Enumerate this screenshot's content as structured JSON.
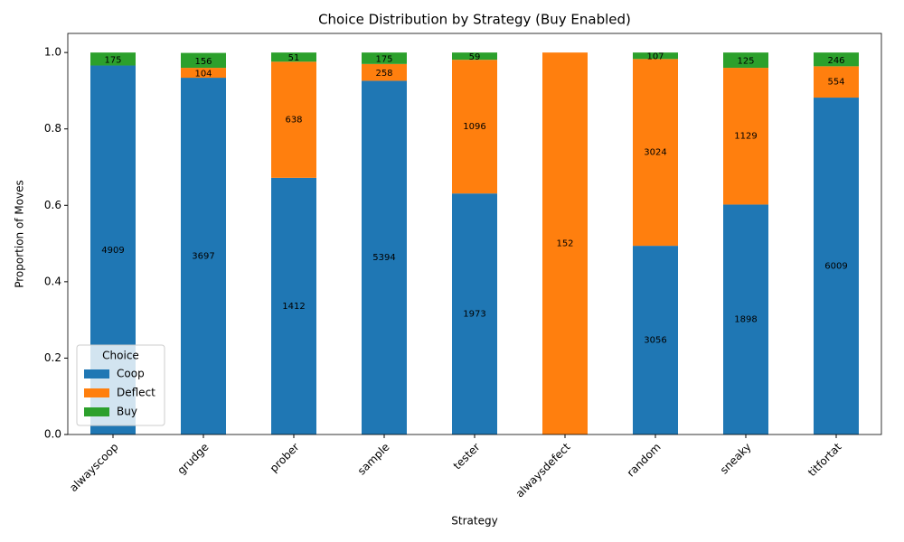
{
  "chart_data": {
    "type": "stacked_bar",
    "title": "Choice Distribution by Strategy (Buy Enabled)",
    "x_label": "Strategy",
    "y_label": "Proportion of Moves",
    "categories": [
      "alwayscoop",
      "grudge",
      "prober",
      "sample",
      "tester",
      "alwaysdefect",
      "random",
      "sneaky",
      "titfortat"
    ],
    "series": [
      {
        "name": "Coop",
        "color": "#1f77b4",
        "values": [
          0.966,
          0.934,
          0.672,
          0.926,
          0.631,
          0,
          0.494,
          0.602,
          0.882
        ],
        "counts": [
          "4909",
          "3697",
          "1412",
          "5394",
          "1973",
          null,
          "3056",
          "1898",
          "6009"
        ]
      },
      {
        "name": "Deflect",
        "color": "#ff7f0e",
        "values": [
          0,
          0.026,
          0.304,
          0.044,
          0.35,
          1,
          0.489,
          0.358,
          0.082
        ],
        "counts": [
          null,
          "104",
          "638",
          "258",
          "1096",
          "152",
          "3024",
          "1129",
          "554"
        ]
      },
      {
        "name": "Buy",
        "color": "#2ca02c",
        "values": [
          0.034,
          0.039,
          0.024,
          0.03,
          0.019,
          0,
          0.017,
          0.04,
          0.036
        ],
        "counts": [
          "175",
          "156",
          "51",
          "175",
          "59",
          null,
          "107",
          "125",
          "246"
        ]
      }
    ],
    "ylim": [
      0,
      1.05
    ],
    "yticks": [
      {
        "value": 0,
        "label": "0.0"
      },
      {
        "value": 0.2,
        "label": "0.2"
      },
      {
        "value": 0.4,
        "label": "0.4"
      },
      {
        "value": 0.6,
        "label": "0.6"
      },
      {
        "value": 0.8,
        "label": "0.8"
      },
      {
        "value": 1,
        "label": "1.0"
      }
    ],
    "legend_title": "Choice",
    "legend_position": "lower left",
    "grid": false
  }
}
